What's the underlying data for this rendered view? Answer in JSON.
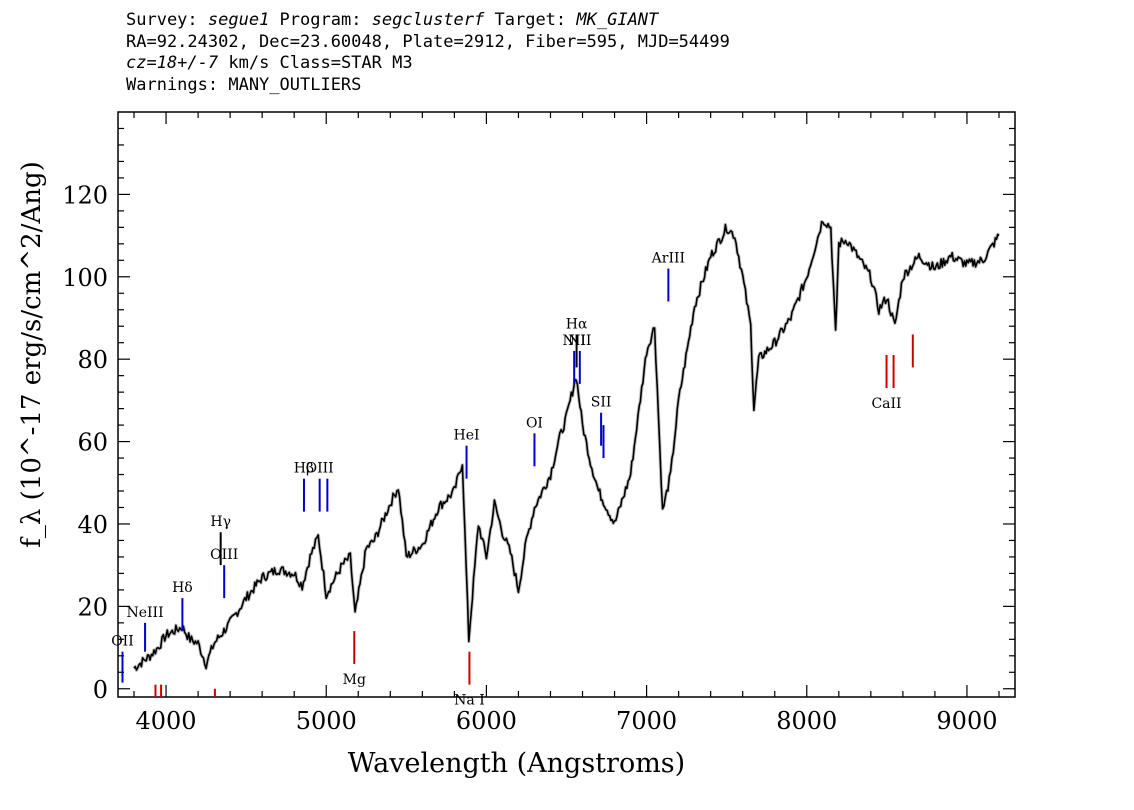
{
  "header": {
    "line1": {
      "survey_label": "Survey: ",
      "survey": "segue1",
      "program_label": " Program: ",
      "program": "segclusterf",
      "target_label": " Target: ",
      "target": "MK_GIANT"
    },
    "line2": "RA=92.24302, Dec=23.60048, Plate=2912, Fiber=595, MJD=54499",
    "line3": {
      "cz_label": "cz=18+/-7",
      "rest": " km/s Class=STAR M3"
    },
    "line4": "Warnings: MANY_OUTLIERS"
  },
  "chart_data": {
    "type": "line",
    "xlabel": "Wavelength (Angstroms)",
    "ylabel": "f_λ (10^-17 erg/s/cm^2/Ang)",
    "xlim": [
      3700,
      9300
    ],
    "ylim": [
      -2,
      140
    ],
    "xticks": [
      4000,
      5000,
      6000,
      7000,
      8000,
      9000
    ],
    "yticks": [
      0,
      20,
      40,
      60,
      80,
      100,
      120
    ],
    "series": [
      {
        "color": "#000000",
        "x": [
          3800,
          3900,
          3950,
          4000,
          4100,
          4150,
          4200,
          4250,
          4300,
          4400,
          4500,
          4600,
          4700,
          4800,
          4850,
          4900,
          4950,
          5000,
          5100,
          5150,
          5180,
          5250,
          5300,
          5400,
          5450,
          5500,
          5600,
          5700,
          5800,
          5850,
          5890,
          5950,
          6000,
          6050,
          6100,
          6150,
          6200,
          6250,
          6300,
          6400,
          6450,
          6500,
          6560,
          6600,
          6650,
          6700,
          6800,
          6900,
          7000,
          7050,
          7100,
          7150,
          7200,
          7300,
          7400,
          7500,
          7550,
          7600,
          7650,
          7670,
          7700,
          7800,
          7900,
          8000,
          8100,
          8150,
          8180,
          8200,
          8250,
          8300,
          8400,
          8450,
          8500,
          8550,
          8600,
          8700,
          8800,
          8900,
          9000,
          9100,
          9200
        ],
        "y": [
          5,
          8,
          10,
          13,
          15,
          12,
          11,
          6,
          11,
          16,
          22,
          27,
          29,
          28,
          25,
          32,
          37,
          23,
          30,
          32,
          18,
          34,
          36,
          45,
          49,
          32,
          35,
          44,
          48,
          55,
          12,
          40,
          32,
          45,
          38,
          33,
          24,
          36,
          44,
          52,
          60,
          66,
          76,
          64,
          55,
          48,
          40,
          52,
          82,
          88,
          43,
          52,
          70,
          93,
          105,
          112,
          110,
          100,
          88,
          68,
          80,
          84,
          90,
          100,
          114,
          112,
          86,
          108,
          109,
          106,
          100,
          92,
          95,
          88,
          100,
          105,
          102,
          105,
          103,
          104,
          110
        ]
      }
    ],
    "annotations": [
      {
        "label": "OII",
        "x": 3728,
        "y_top": 9,
        "y_bot": 1.5,
        "color": "#0000cc"
      },
      {
        "label": "NeIII",
        "x": 3869,
        "y_top": 16,
        "y_bot": 9,
        "color": "#0000cc"
      },
      {
        "label": "Hδ",
        "x": 4102,
        "y_top": 22,
        "y_bot": 14,
        "color": "#0000cc"
      },
      {
        "label": "Hγ",
        "x": 4341,
        "y_top": 38,
        "y_bot": 30,
        "color": "#000000"
      },
      {
        "label": "OIII",
        "x": 4363,
        "y_top": 30,
        "y_bot": 22,
        "color": "#0000cc"
      },
      {
        "label": "Hβ",
        "x": 4861,
        "y_top": 51,
        "y_bot": 43,
        "color": "#0000cc"
      },
      {
        "label": "OIII",
        "x": 4959,
        "y_top": 51,
        "y_bot": 43,
        "color": "#0000cc"
      },
      {
        "label": "",
        "x": 5007,
        "y_top": 51,
        "y_bot": 43,
        "color": "#0000cc"
      },
      {
        "label": "HeI",
        "x": 5876,
        "y_top": 59,
        "y_bot": 51,
        "color": "#0000cc"
      },
      {
        "label": "OI",
        "x": 6300,
        "y_top": 62,
        "y_bot": 54,
        "color": "#0000cc"
      },
      {
        "label": "NII",
        "x": 6548,
        "y_top": 82,
        "y_bot": 74,
        "color": "#0000cc"
      },
      {
        "label": "Hα",
        "x": 6563,
        "y_top": 86,
        "y_bot": 78,
        "color": "#000000"
      },
      {
        "label": "NII",
        "x": 6583,
        "y_top": 82,
        "y_bot": 74,
        "color": "#0000cc"
      },
      {
        "label": "SII",
        "x": 6716,
        "y_top": 67,
        "y_bot": 59,
        "color": "#0000cc"
      },
      {
        "label": "",
        "x": 6731,
        "y_top": 64,
        "y_bot": 56,
        "color": "#0000cc"
      },
      {
        "label": "ArIII",
        "x": 7136,
        "y_top": 102,
        "y_bot": 94,
        "color": "#0000cc"
      },
      {
        "label": "Mg",
        "x": 5175,
        "y_top": 14,
        "y_bot": 6,
        "color": "#cc0000"
      },
      {
        "label": "Na I",
        "x": 5894,
        "y_top": 9,
        "y_bot": 1,
        "color": "#cc0000"
      },
      {
        "label": "CaII",
        "x": 8498,
        "y_top": 81,
        "y_bot": 73,
        "color": "#cc0000"
      },
      {
        "label": "",
        "x": 8542,
        "y_top": 81,
        "y_bot": 73,
        "color": "#cc0000"
      },
      {
        "label": "",
        "x": 8662,
        "y_top": 86,
        "y_bot": 78,
        "color": "#cc0000"
      },
      {
        "label": "",
        "x": 3934,
        "y_top": 1,
        "y_bot": -2,
        "color": "#cc0000"
      },
      {
        "label": "",
        "x": 3969,
        "y_top": 1,
        "y_bot": -2,
        "color": "#cc0000"
      },
      {
        "label": "",
        "x": 4305,
        "y_top": 0,
        "y_bot": -2,
        "color": "#cc0000"
      }
    ]
  }
}
